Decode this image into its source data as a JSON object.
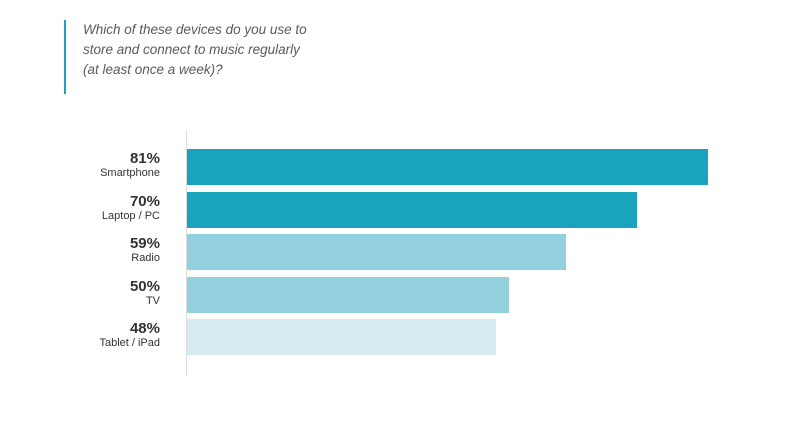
{
  "question": {
    "lines": [
      "Which of these devices do you use to",
      "store and connect to music regularly",
      "(at least once a week)?"
    ]
  },
  "colors": {
    "accent": "#1aa3c0",
    "bar_dark": "#1aa3bc",
    "bar_mid": "#93d0dd",
    "bar_light": "#d4ebf1"
  },
  "chart_data": {
    "type": "bar",
    "orientation": "horizontal",
    "title": "Which of these devices do you use to store and connect to music regularly (at least once a week)?",
    "categories": [
      "Smartphone",
      "Laptop / PC",
      "Radio",
      "TV",
      "Tablet / iPad"
    ],
    "values": [
      81,
      70,
      59,
      50,
      48
    ],
    "value_labels": [
      "81%",
      "70%",
      "59%",
      "50%",
      "48%"
    ],
    "bar_colors": [
      "#1aa3bc",
      "#1aa3bc",
      "#93d0dd",
      "#93d0dd",
      "#d4ebf1"
    ],
    "unit": "%",
    "xlim": [
      0,
      100
    ],
    "grid": false,
    "legend": "none"
  }
}
